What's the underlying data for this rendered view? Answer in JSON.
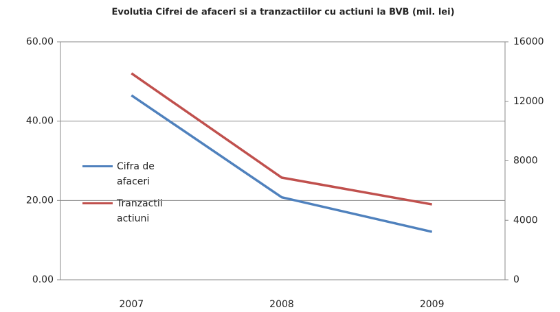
{
  "chart_data": {
    "type": "line",
    "title": "Evolutia Cifrei de afaceri si a tranzactiilor cu actiuni la BVB (mil. lei)",
    "categories": [
      "2007",
      "2008",
      "2009"
    ],
    "series": [
      {
        "name": "Cifra de afaceri",
        "color": "#4f81bd",
        "values": [
          46.5,
          20.8,
          12.1
        ]
      },
      {
        "name": "Tranzactii actiuni",
        "color": "#c0504d",
        "values": [
          13880,
          6870,
          5070
        ],
        "axis": "y2"
      }
    ],
    "ylim": [
      0,
      60
    ],
    "yticks": [
      {
        "value": 0,
        "label": "0.00"
      },
      {
        "value": 20,
        "label": "20.00"
      },
      {
        "value": 40,
        "label": "40.00"
      },
      {
        "value": 60,
        "label": "60.00"
      }
    ],
    "y2lim": [
      0,
      16000
    ],
    "y2ticks": [
      0,
      4000,
      8000,
      12000,
      16000
    ],
    "grid": true
  }
}
